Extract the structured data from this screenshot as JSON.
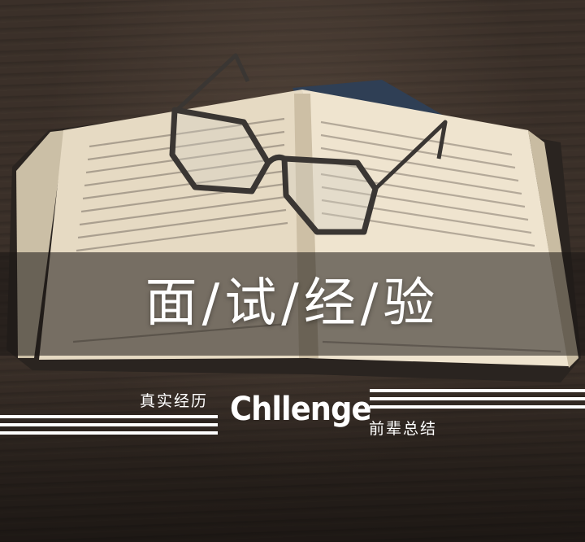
{
  "poster": {
    "headline": "面/试/经/验",
    "left_caption": "真实经历",
    "brand_word": "Chllenge",
    "right_caption": "前辈总结"
  },
  "colors": {
    "text": "#ffffff",
    "band": "#19161488",
    "table": "#3b3029",
    "paper": "#e8dcc6"
  },
  "icons": {
    "book": "open-book-photo",
    "glasses": "reading-glasses-photo"
  }
}
